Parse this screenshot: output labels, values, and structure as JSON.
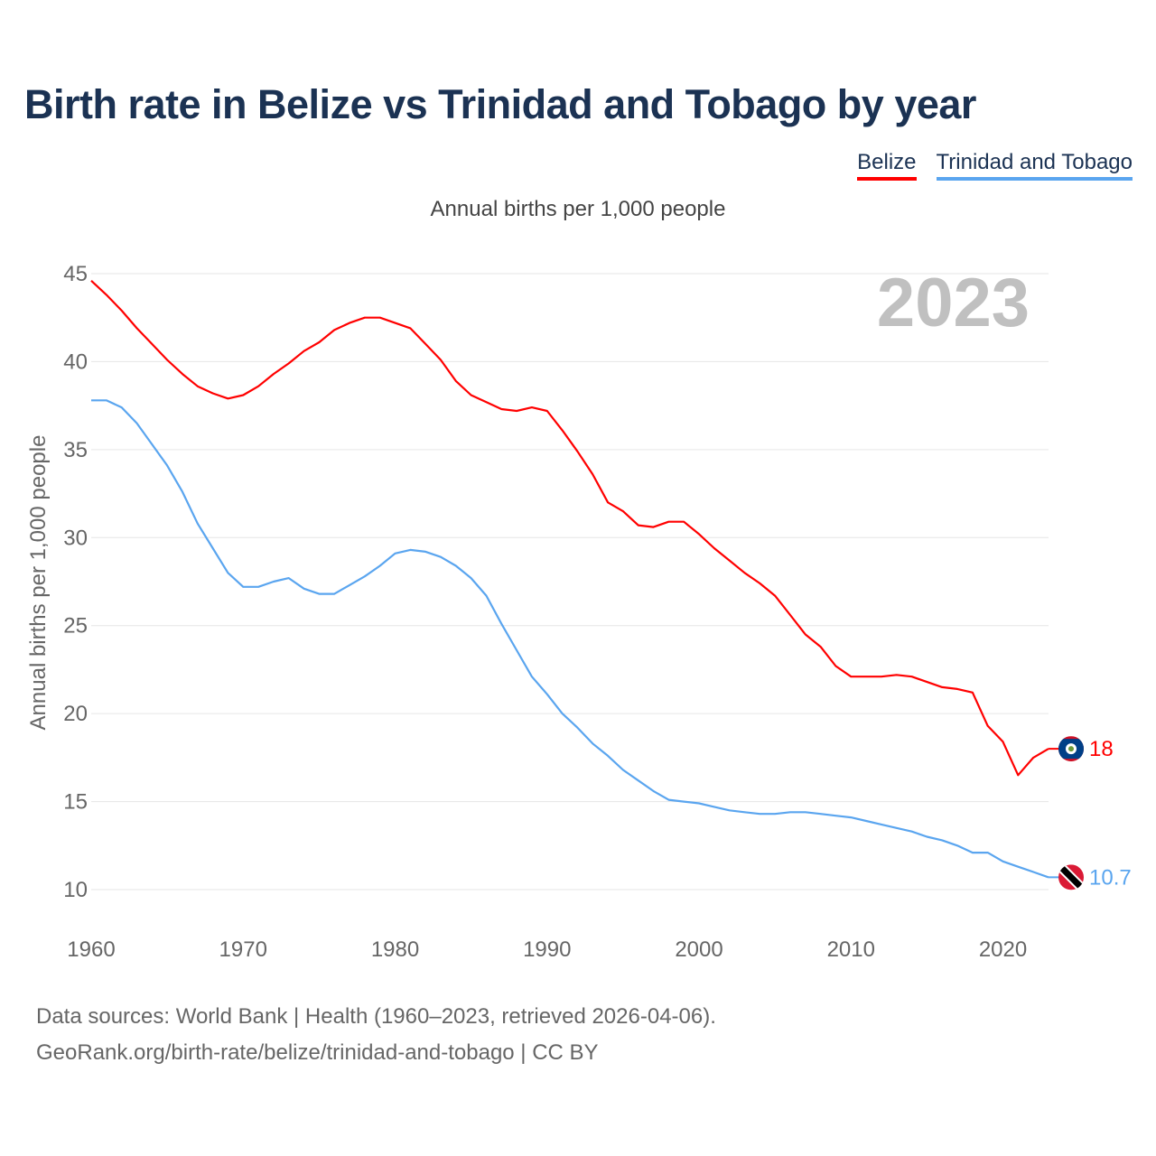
{
  "title": "Birth rate in Belize vs Trinidad and Tobago by year",
  "legend": [
    {
      "label": "Belize",
      "color": "#ff0000"
    },
    {
      "label": "Trinidad and Tobago",
      "color": "#5aa5ef"
    }
  ],
  "footer": {
    "line1": "Data sources: World Bank | Health (1960–2023, retrieved 2026-04-06).",
    "line2": "GeoRank.org/birth-rate/belize/trinidad-and-tobago | CC BY"
  },
  "chart_data": {
    "type": "line",
    "title": "Birth rate in Belize vs Trinidad and Tobago by year",
    "subtitle": "Annual births per 1,000 people",
    "ylabel": "Annual births per 1,000 people",
    "xlabel": "",
    "year_label": "2023",
    "xlim": [
      1960,
      2023
    ],
    "ylim": [
      10,
      45
    ],
    "xticks": [
      1960,
      1970,
      1980,
      1990,
      2000,
      2010,
      2020
    ],
    "yticks": [
      10,
      15,
      20,
      25,
      30,
      35,
      40,
      45
    ],
    "grid": true,
    "legend_placement": "top-right",
    "x_start": 1960,
    "series": [
      {
        "name": "Belize",
        "color": "#ff0000",
        "end_label": "18",
        "values": [
          44.6,
          43.8,
          42.9,
          41.9,
          41.0,
          40.1,
          39.3,
          38.6,
          38.2,
          37.9,
          38.1,
          38.6,
          39.3,
          39.9,
          40.6,
          41.1,
          41.8,
          42.2,
          42.5,
          42.5,
          42.2,
          41.9,
          41.0,
          40.1,
          38.9,
          38.1,
          37.7,
          37.3,
          37.2,
          37.4,
          37.2,
          36.1,
          34.9,
          33.6,
          32.0,
          31.5,
          30.7,
          30.6,
          30.9,
          30.9,
          30.2,
          29.4,
          28.7,
          28.0,
          27.4,
          26.7,
          25.6,
          24.5,
          23.8,
          22.7,
          22.1,
          22.1,
          22.1,
          22.2,
          22.1,
          21.8,
          21.5,
          21.4,
          21.2,
          19.3,
          18.4,
          16.5,
          17.5,
          18.0
        ]
      },
      {
        "name": "Trinidad and Tobago",
        "color": "#5aa5ef",
        "end_label": "10.7",
        "values": [
          37.8,
          37.8,
          37.4,
          36.5,
          35.3,
          34.1,
          32.6,
          30.8,
          29.4,
          28.0,
          27.2,
          27.2,
          27.5,
          27.7,
          27.1,
          26.8,
          26.8,
          27.3,
          27.8,
          28.4,
          29.1,
          29.3,
          29.2,
          28.9,
          28.4,
          27.7,
          26.7,
          25.1,
          23.6,
          22.1,
          21.1,
          20.0,
          19.2,
          18.3,
          17.6,
          16.8,
          16.2,
          15.6,
          15.1,
          15.0,
          14.9,
          14.7,
          14.5,
          14.4,
          14.3,
          14.3,
          14.4,
          14.4,
          14.3,
          14.2,
          14.1,
          13.9,
          13.7,
          13.5,
          13.3,
          13.0,
          12.8,
          12.5,
          12.1,
          12.1,
          11.6,
          11.3,
          11.0,
          10.7
        ]
      }
    ]
  }
}
